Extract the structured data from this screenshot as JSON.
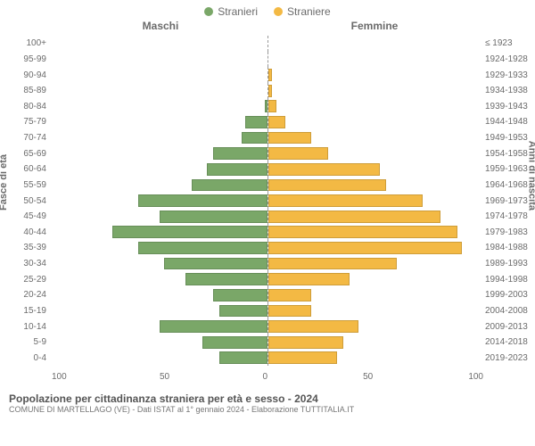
{
  "legend": {
    "male": "Stranieri",
    "female": "Straniere"
  },
  "colors": {
    "male": "#7aa768",
    "female": "#f3b944",
    "text": "#6b6b6b"
  },
  "column_headers": {
    "left": "Maschi",
    "right": "Femmine"
  },
  "y_axis_left_label": "Fasce di età",
  "y_axis_right_label": "Anni di nascita",
  "x_axis": {
    "max": 100,
    "ticks": [
      0,
      50,
      100
    ]
  },
  "rows": [
    {
      "age": "100+",
      "birth": "≤ 1923",
      "m": 0,
      "f": 0
    },
    {
      "age": "95-99",
      "birth": "1924-1928",
      "m": 0,
      "f": 0
    },
    {
      "age": "90-94",
      "birth": "1929-1933",
      "m": 0,
      "f": 2
    },
    {
      "age": "85-89",
      "birth": "1934-1938",
      "m": 0,
      "f": 2
    },
    {
      "age": "80-84",
      "birth": "1939-1943",
      "m": 1,
      "f": 4
    },
    {
      "age": "75-79",
      "birth": "1944-1948",
      "m": 10,
      "f": 8
    },
    {
      "age": "70-74",
      "birth": "1949-1953",
      "m": 12,
      "f": 20
    },
    {
      "age": "65-69",
      "birth": "1954-1958",
      "m": 25,
      "f": 28
    },
    {
      "age": "60-64",
      "birth": "1959-1963",
      "m": 28,
      "f": 52
    },
    {
      "age": "55-59",
      "birth": "1964-1968",
      "m": 35,
      "f": 55
    },
    {
      "age": "50-54",
      "birth": "1969-1973",
      "m": 60,
      "f": 72
    },
    {
      "age": "45-49",
      "birth": "1974-1978",
      "m": 50,
      "f": 80
    },
    {
      "age": "40-44",
      "birth": "1979-1983",
      "m": 72,
      "f": 88
    },
    {
      "age": "35-39",
      "birth": "1984-1988",
      "m": 60,
      "f": 90
    },
    {
      "age": "30-34",
      "birth": "1989-1993",
      "m": 48,
      "f": 60
    },
    {
      "age": "25-29",
      "birth": "1994-1998",
      "m": 38,
      "f": 38
    },
    {
      "age": "20-24",
      "birth": "1999-2003",
      "m": 25,
      "f": 20
    },
    {
      "age": "15-19",
      "birth": "2004-2008",
      "m": 22,
      "f": 20
    },
    {
      "age": "10-14",
      "birth": "2009-2013",
      "m": 50,
      "f": 42
    },
    {
      "age": "5-9",
      "birth": "2014-2018",
      "m": 30,
      "f": 35
    },
    {
      "age": "0-4",
      "birth": "2019-2023",
      "m": 22,
      "f": 32
    }
  ],
  "footer": {
    "title": "Popolazione per cittadinanza straniera per età e sesso - 2024",
    "subtitle": "COMUNE DI MARTELLAGO (VE) - Dati ISTAT al 1° gennaio 2024 - Elaborazione TUTTITALIA.IT"
  }
}
